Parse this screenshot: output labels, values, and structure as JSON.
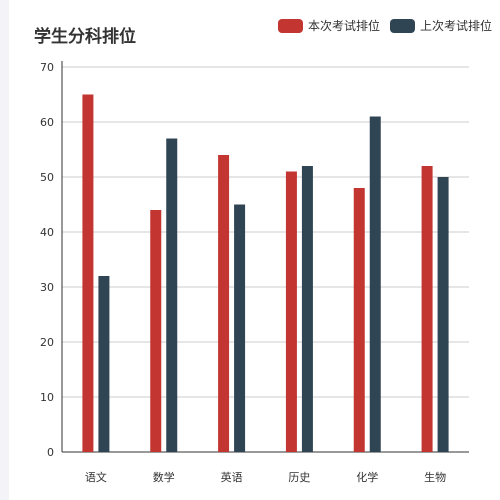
{
  "chart_data": {
    "type": "bar",
    "title": "学生分科排位",
    "categories": [
      "语文",
      "数学",
      "英语",
      "历史",
      "化学",
      "生物"
    ],
    "series": [
      {
        "name": "本次考试排位",
        "color": "#c23531",
        "values": [
          65,
          44,
          54,
          51,
          48,
          52
        ]
      },
      {
        "name": "上次考试排位",
        "color": "#2f4554",
        "values": [
          32,
          57,
          45,
          52,
          61,
          50
        ]
      }
    ],
    "ylim": [
      0,
      70
    ],
    "yticks": [
      0,
      10,
      20,
      30,
      40,
      50,
      60,
      70
    ],
    "grid": true,
    "legend_position": "top-right",
    "xlabel": "",
    "ylabel": ""
  }
}
